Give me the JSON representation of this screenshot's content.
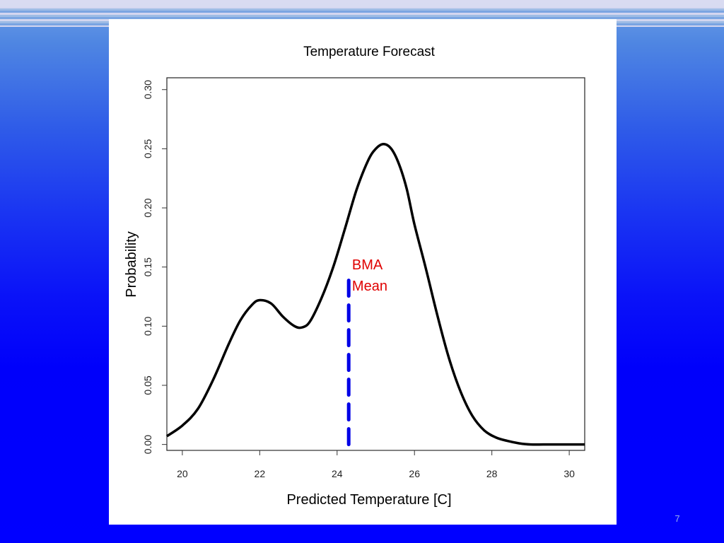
{
  "slide": {
    "number": "7"
  },
  "chart_data": {
    "type": "line",
    "title": "Temperature Forecast",
    "xlabel": "Predicted Temperature [C]",
    "ylabel": "Probability",
    "xlim": [
      19.6,
      30.4
    ],
    "ylim": [
      -0.005,
      0.31
    ],
    "xticks": [
      20,
      22,
      24,
      26,
      28,
      30
    ],
    "xtick_labels": [
      "20",
      "22",
      "24",
      "26",
      "28",
      "30"
    ],
    "yticks": [
      0.0,
      0.05,
      0.1,
      0.15,
      0.2,
      0.25,
      0.3
    ],
    "ytick_labels": [
      "0.00",
      "0.05",
      "0.10",
      "0.15",
      "0.20",
      "0.25",
      "0.30"
    ],
    "grid": false,
    "series": [
      {
        "color": "#000000",
        "x": [
          19.6,
          20.0,
          20.4,
          20.8,
          21.2,
          21.5,
          21.8,
          22.0,
          22.3,
          22.6,
          22.9,
          23.1,
          23.3,
          23.6,
          23.9,
          24.2,
          24.5,
          24.8,
          25.0,
          25.2,
          25.4,
          25.6,
          25.8,
          26.0,
          26.3,
          26.6,
          26.9,
          27.2,
          27.5,
          27.8,
          28.1,
          28.4,
          28.7,
          29.0,
          29.5,
          30.0,
          30.4
        ],
        "y": [
          0.007,
          0.016,
          0.03,
          0.055,
          0.085,
          0.105,
          0.118,
          0.122,
          0.119,
          0.108,
          0.1,
          0.099,
          0.104,
          0.124,
          0.15,
          0.182,
          0.215,
          0.24,
          0.25,
          0.254,
          0.25,
          0.237,
          0.216,
          0.186,
          0.148,
          0.108,
          0.072,
          0.044,
          0.024,
          0.012,
          0.006,
          0.003,
          0.001,
          0.0,
          0.0,
          0.0,
          0.0
        ]
      }
    ],
    "mean_line": {
      "x": 24.3,
      "y0": 0.0,
      "y1": 0.145,
      "color": "#0000e6"
    },
    "annotation": {
      "lines": [
        "BMA",
        "Mean"
      ],
      "color": "#e00000",
      "x": 24.35,
      "y": 0.148
    }
  }
}
